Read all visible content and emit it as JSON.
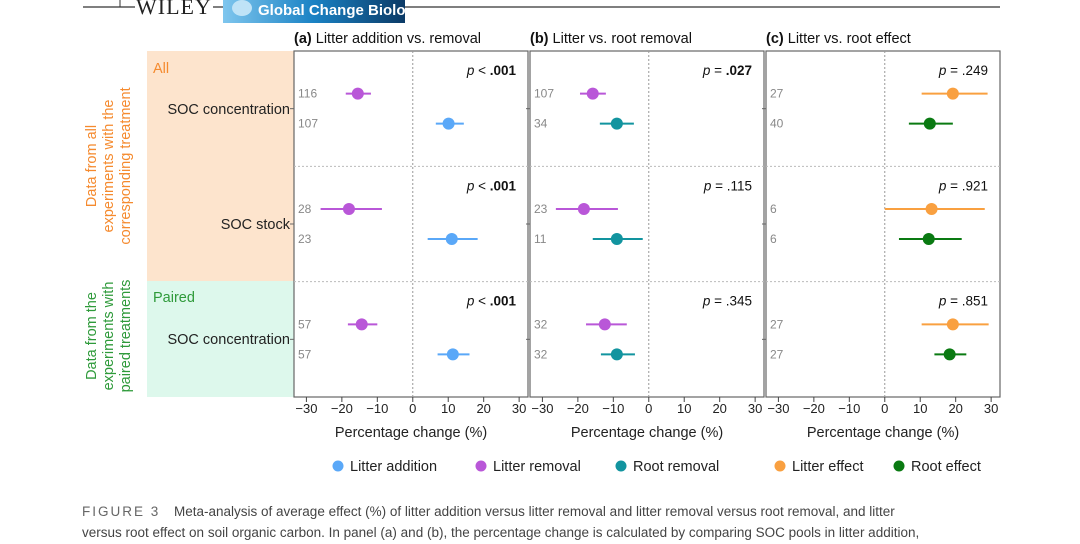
{
  "header": {
    "publisher": "WILEY",
    "journal": "Global Change Biology"
  },
  "groups": [
    {
      "tag": "All",
      "side_label_lines": [
        "Data from all",
        "experiments with the",
        "corresponding treatment"
      ],
      "color": "#f58a2e",
      "bg": "#fde4cd"
    },
    {
      "tag": "Paired",
      "side_label_lines": [
        "Data from the",
        "experiments with",
        "paired treatments"
      ],
      "color": "#2e9a3a",
      "bg": "#ddf8ec"
    }
  ],
  "row_labels": [
    "SOC concentration",
    "SOC stock",
    "SOC concentration"
  ],
  "legend": [
    {
      "label": "Litter addition",
      "color": "#5aa8f8"
    },
    {
      "label": "Litter removal",
      "color": "#b957d8"
    },
    {
      "label": "Root removal",
      "color": "#12949f"
    },
    {
      "label": "Litter effect",
      "color": "#f9a040"
    },
    {
      "label": "Root effect",
      "color": "#0a7a12"
    }
  ],
  "caption": {
    "label": "FIGURE 3",
    "line1": "Meta-analysis of average effect (%) of litter addition versus litter removal and litter removal versus root removal, and litter",
    "line2": "versus root effect on soil organic carbon. In panel (a) and (b), the percentage change is calculated by comparing SOC pools in litter addition,"
  },
  "chart_data": [
    {
      "type": "forest",
      "panel": "(a)",
      "title": "Litter addition vs. removal",
      "xlabel": "Percentage change (%)",
      "xlim": [
        -33.5,
        32.5
      ],
      "xticks": [
        "−30",
        "−20",
        "−10",
        "0",
        "10",
        "20",
        "30"
      ],
      "xtick_values": [
        -30,
        -20,
        -10,
        0,
        10,
        20,
        30
      ],
      "rows": [
        {
          "p_prefix": "p",
          "p_op": "<",
          "p_val": ".001",
          "p_bold": true,
          "points": [
            {
              "series": "Litter removal",
              "n": "116",
              "mean": -15.5,
              "lo": -18.9,
              "hi": -11.8
            },
            {
              "series": "Litter addition",
              "n": "107",
              "mean": 10.1,
              "lo": 6.5,
              "hi": 14.4
            }
          ]
        },
        {
          "p_prefix": "p",
          "p_op": "<",
          "p_val": ".001",
          "p_bold": true,
          "points": [
            {
              "series": "Litter removal",
              "n": "28",
              "mean": -18.0,
              "lo": -26.0,
              "hi": -8.7
            },
            {
              "series": "Litter addition",
              "n": "23",
              "mean": 11.0,
              "lo": 4.2,
              "hi": 18.3
            }
          ]
        },
        {
          "p_prefix": "p",
          "p_op": "<",
          "p_val": ".001",
          "p_bold": true,
          "points": [
            {
              "series": "Litter removal",
              "n": "57",
              "mean": -14.4,
              "lo": -18.3,
              "hi": -10.0
            },
            {
              "series": "Litter addition",
              "n": "57",
              "mean": 11.3,
              "lo": 7.0,
              "hi": 16.0
            }
          ]
        }
      ]
    },
    {
      "type": "forest",
      "panel": "(b)",
      "title": "Litter vs. root removal",
      "xlabel": "Percentage change (%)",
      "xlim": [
        -33.5,
        32.5
      ],
      "xticks": [
        "−30",
        "−20",
        "−10",
        "0",
        "10",
        "20",
        "30"
      ],
      "xtick_values": [
        -30,
        -20,
        -10,
        0,
        10,
        20,
        30
      ],
      "rows": [
        {
          "p_prefix": "p",
          "p_op": "=",
          "p_val": ".027",
          "p_bold": true,
          "points": [
            {
              "series": "Litter removal",
              "n": "107",
              "mean": -15.8,
              "lo": -19.4,
              "hi": -12.1
            },
            {
              "series": "Root removal",
              "n": "34",
              "mean": -9.0,
              "lo": -13.8,
              "hi": -4.2
            }
          ]
        },
        {
          "p_prefix": "p",
          "p_op": "=",
          "p_val": ".115",
          "p_bold": false,
          "points": [
            {
              "series": "Litter removal",
              "n": "23",
              "mean": -18.3,
              "lo": -26.2,
              "hi": -8.7
            },
            {
              "series": "Root removal",
              "n": "11",
              "mean": -9.0,
              "lo": -15.8,
              "hi": -1.7
            }
          ]
        },
        {
          "p_prefix": "p",
          "p_op": "=",
          "p_val": ".345",
          "p_bold": false,
          "points": [
            {
              "series": "Litter removal",
              "n": "32",
              "mean": -12.4,
              "lo": -17.7,
              "hi": -6.2
            },
            {
              "series": "Root removal",
              "n": "32",
              "mean": -9.0,
              "lo": -13.5,
              "hi": -3.9
            }
          ]
        }
      ]
    },
    {
      "type": "forest",
      "panel": "(c)",
      "title": "Litter vs. root effect",
      "xlabel": "Percentage change (%)",
      "xlim": [
        -33.5,
        32.5
      ],
      "xticks": [
        "−30",
        "−20",
        "−10",
        "0",
        "10",
        "20",
        "30"
      ],
      "xtick_values": [
        -30,
        -20,
        -10,
        0,
        10,
        20,
        30
      ],
      "rows": [
        {
          "p_prefix": "p",
          "p_op": "=",
          "p_val": ".249",
          "p_bold": false,
          "points": [
            {
              "series": "Litter effect",
              "n": "27",
              "mean": 19.2,
              "lo": 10.4,
              "hi": 29.0
            },
            {
              "series": "Root effect",
              "n": "40",
              "mean": 12.7,
              "lo": 6.8,
              "hi": 19.2
            }
          ]
        },
        {
          "p_prefix": "p",
          "p_op": "=",
          "p_val": ".921",
          "p_bold": false,
          "points": [
            {
              "series": "Litter effect",
              "n": "6",
              "mean": 13.2,
              "lo": 0.0,
              "hi": 28.2
            },
            {
              "series": "Root effect",
              "n": "6",
              "mean": 12.4,
              "lo": 4.0,
              "hi": 21.7
            }
          ]
        },
        {
          "p_prefix": "p",
          "p_op": "=",
          "p_val": ".851",
          "p_bold": false,
          "points": [
            {
              "series": "Litter effect",
              "n": "27",
              "mean": 19.2,
              "lo": 10.4,
              "hi": 29.3
            },
            {
              "series": "Root effect",
              "n": "27",
              "mean": 18.3,
              "lo": 14.0,
              "hi": 23.0
            }
          ]
        }
      ]
    }
  ]
}
